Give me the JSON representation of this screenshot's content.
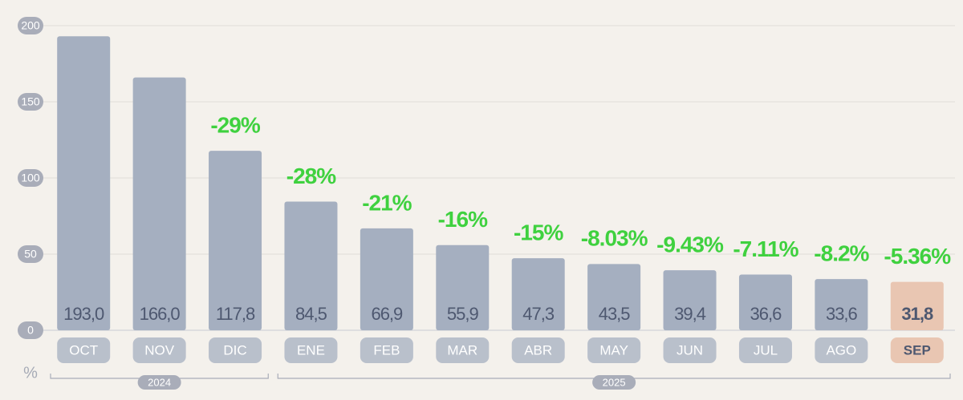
{
  "chart_data": {
    "type": "bar",
    "y_axis_label": "%",
    "categories": [
      "OCT",
      "NOV",
      "DIC",
      "ENE",
      "FEB",
      "MAR",
      "ABR",
      "MAY",
      "JUN",
      "JUL",
      "AGO",
      "SEP"
    ],
    "values": [
      193.0,
      166.0,
      117.8,
      84.5,
      66.9,
      55.9,
      47.3,
      43.5,
      39.4,
      36.6,
      33.6,
      31.8
    ],
    "value_labels": [
      "193,0",
      "166,0",
      "117,8",
      "84,5",
      "66,9",
      "55,9",
      "47,3",
      "43,5",
      "39,4",
      "36,6",
      "33,6",
      "31,8"
    ],
    "annotations": [
      null,
      null,
      "-29%",
      "-28%",
      "-21%",
      "-16%",
      "-15%",
      "-8.03%",
      "-9.43%",
      "-7.11%",
      "-8.2%",
      "-5.36%"
    ],
    "colors": [
      "#a5afc0",
      "#a5afc0",
      "#a5afc0",
      "#a5afc0",
      "#a5afc0",
      "#a5afc0",
      "#a5afc0",
      "#a5afc0",
      "#a5afc0",
      "#a5afc0",
      "#a5afc0",
      "#e9c6b2"
    ],
    "annotation_color": "#3fd13f",
    "groups": [
      {
        "label": "2024",
        "categories": [
          "OCT",
          "NOV",
          "DIC"
        ]
      },
      {
        "label": "2025",
        "categories": [
          "ENE",
          "FEB",
          "MAR",
          "ABR",
          "MAY",
          "JUN",
          "JUL",
          "AGO",
          "SEP"
        ]
      }
    ],
    "ylim": [
      0,
      200
    ],
    "yticks": [
      0,
      50,
      100,
      150,
      200
    ],
    "grid": true
  }
}
